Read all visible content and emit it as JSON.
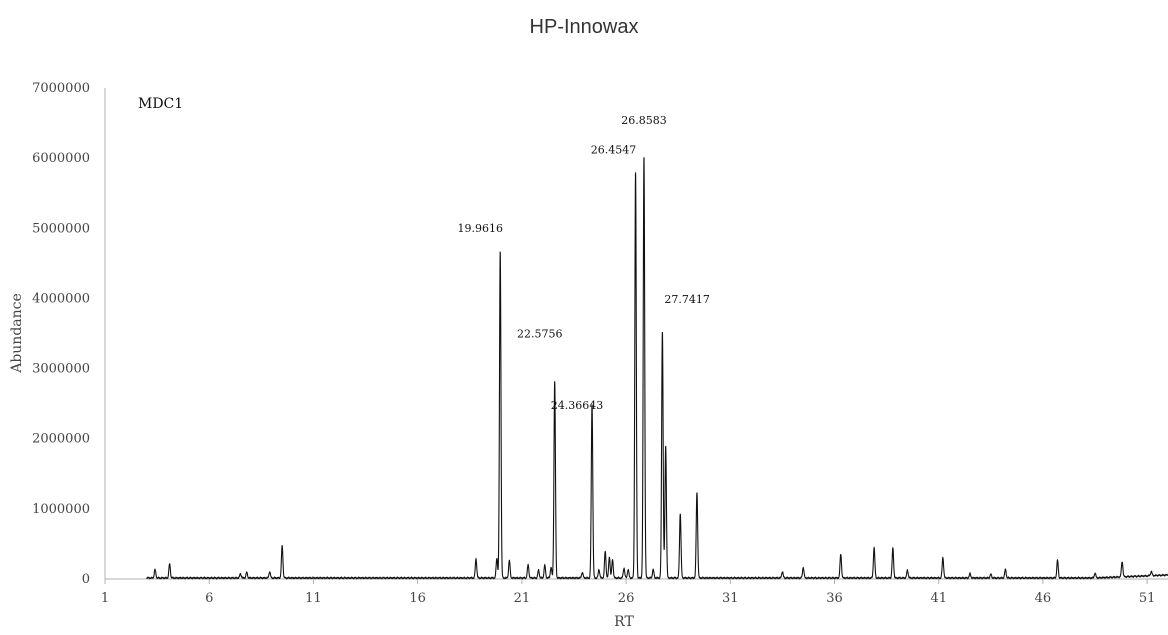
{
  "chart_data": {
    "type": "line",
    "title": "HP-Innowax",
    "sample_label": "MDC1",
    "xlabel": "RT",
    "ylabel": "Abundance",
    "xlim": [
      1,
      52
    ],
    "ylim": [
      0,
      7000000
    ],
    "x_ticks": [
      "1",
      "6",
      "11",
      "16",
      "21",
      "26",
      "31",
      "36",
      "41",
      "46",
      "51"
    ],
    "y_ticks": [
      "0",
      "1000000",
      "2000000",
      "3000000",
      "4000000",
      "5000000",
      "6000000",
      "7000000"
    ],
    "grid": false,
    "series": [
      {
        "baseline": 15000,
        "peaks": [
          [
            3.4,
            120000
          ],
          [
            4.1,
            200000
          ],
          [
            7.5,
            60000
          ],
          [
            7.8,
            80000
          ],
          [
            8.9,
            90000
          ],
          [
            9.5,
            460000
          ],
          [
            18.8,
            270000
          ],
          [
            19.8,
            280000
          ],
          [
            19.9616,
            4650000
          ],
          [
            20.4,
            250000
          ],
          [
            21.3,
            190000
          ],
          [
            21.8,
            110000
          ],
          [
            22.1,
            180000
          ],
          [
            22.4,
            150000
          ],
          [
            22.5756,
            2800000
          ],
          [
            23.9,
            80000
          ],
          [
            24.36643,
            2480000
          ],
          [
            24.7,
            120000
          ],
          [
            25.0,
            380000
          ],
          [
            25.2,
            300000
          ],
          [
            25.35,
            260000
          ],
          [
            25.9,
            140000
          ],
          [
            26.1,
            120000
          ],
          [
            26.4547,
            5780000
          ],
          [
            26.8583,
            6000000
          ],
          [
            27.3,
            120000
          ],
          [
            27.7417,
            3520000
          ],
          [
            27.9,
            1880000
          ],
          [
            28.6,
            920000
          ],
          [
            29.4,
            1220000
          ],
          [
            33.5,
            90000
          ],
          [
            34.5,
            150000
          ],
          [
            36.3,
            340000
          ],
          [
            37.9,
            430000
          ],
          [
            38.8,
            420000
          ],
          [
            39.5,
            110000
          ],
          [
            41.2,
            290000
          ],
          [
            42.5,
            60000
          ],
          [
            43.5,
            50000
          ],
          [
            44.2,
            120000
          ],
          [
            46.7,
            250000
          ],
          [
            48.5,
            70000
          ],
          [
            49.8,
            220000
          ],
          [
            51.2,
            60000
          ]
        ]
      }
    ],
    "annotations": [
      {
        "text": "19.9616",
        "x": 19.9616,
        "y": 4650000
      },
      {
        "text": "22.5756",
        "x": 22.5756,
        "y": 2800000
      },
      {
        "text": "24.36643",
        "x": 24.36643,
        "y": 2480000
      },
      {
        "text": "26.4547",
        "x": 26.4547,
        "y": 5780000
      },
      {
        "text": "26.8583",
        "x": 26.8583,
        "y": 6000000
      },
      {
        "text": "27.7417",
        "x": 27.7417,
        "y": 3520000
      }
    ]
  }
}
